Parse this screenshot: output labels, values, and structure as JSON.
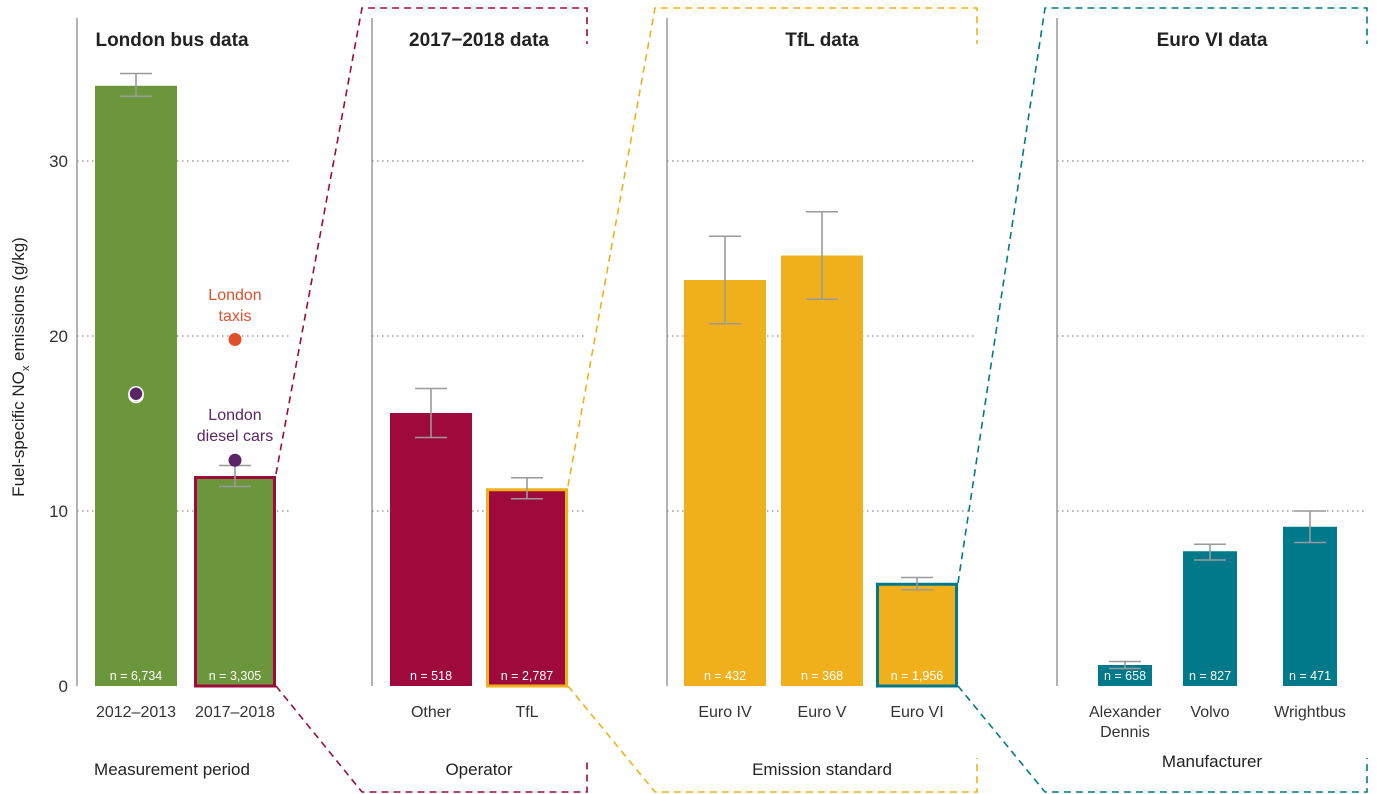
{
  "colors": {
    "green": "#6b963c",
    "crimson": "#9e0a3b",
    "gold": "#f0b01c",
    "teal": "#007a8a",
    "taxi": "#e0502a",
    "car": "#5a2466",
    "errorbar": "#9a9a9a",
    "axis": "#8a8a8a",
    "grid": "#8a8a8a"
  },
  "chart_data": {
    "type": "bar",
    "ylabel_main": "Fuel-specific NO",
    "ylabel_sub": "x",
    "ylabel_tail": " emissions (g/kg)",
    "ylim": [
      0,
      37
    ],
    "yticks": [
      0,
      10,
      20,
      30
    ],
    "grid": true,
    "panels": [
      {
        "title": "London bus data",
        "xlabel": "Measurement period",
        "categories": [
          "2012–2013",
          "2017–2018"
        ],
        "values": [
          34.3,
          12.0
        ],
        "err_low": [
          33.7,
          11.4
        ],
        "err_high": [
          35.0,
          12.6
        ],
        "n": [
          "n = 6,734",
          "n = 3,305"
        ],
        "bar_color": "green",
        "highlight_index": 1,
        "highlight_color": "crimson"
      },
      {
        "title": "2017−2018 data",
        "xlabel": "Operator",
        "categories": [
          "Other",
          "TfL"
        ],
        "values": [
          15.6,
          11.3
        ],
        "err_low": [
          14.2,
          10.7
        ],
        "err_high": [
          17.0,
          11.9
        ],
        "n": [
          "n = 518",
          "n = 2,787"
        ],
        "bar_color": "crimson",
        "highlight_index": 1,
        "highlight_color": "gold"
      },
      {
        "title": "TfL data",
        "xlabel": "Emission standard",
        "categories": [
          "Euro IV",
          "Euro V",
          "Euro VI"
        ],
        "values": [
          23.2,
          24.6,
          5.9
        ],
        "err_low": [
          20.7,
          22.1,
          5.5
        ],
        "err_high": [
          25.7,
          27.1,
          6.2
        ],
        "n": [
          "n = 432",
          "n = 368",
          "n = 1,956"
        ],
        "bar_color": "gold",
        "highlight_index": 2,
        "highlight_color": "teal"
      },
      {
        "title": "Euro VI data",
        "xlabel": "Manufacturer",
        "categories": [
          "Alexander\nDennis",
          "Volvo",
          "Wrightbus"
        ],
        "values": [
          1.2,
          7.7,
          9.1
        ],
        "err_low": [
          1.0,
          7.2,
          8.2
        ],
        "err_high": [
          1.4,
          8.1,
          10.0
        ],
        "n": [
          "n = 658",
          "n = 827",
          "n = 471"
        ],
        "bar_color": "teal",
        "highlight_index": -1,
        "highlight_color": ""
      }
    ],
    "annotations": [
      {
        "label": "London\ntaxis",
        "color": "taxi",
        "points": [
          {
            "category_index": 1,
            "value": 19.8
          },
          {
            "category_index": 0,
            "value": 16.6
          }
        ]
      },
      {
        "label": "London\ndiesel cars",
        "color": "car",
        "points": [
          {
            "category_index": 1,
            "value": 12.9
          },
          {
            "category_index": 0,
            "value": 16.7
          }
        ]
      }
    ]
  }
}
